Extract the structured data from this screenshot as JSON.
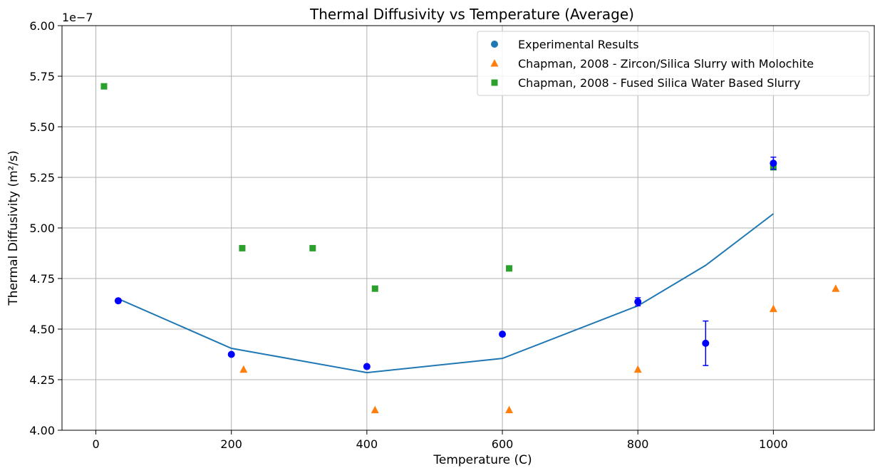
{
  "chart_data": {
    "type": "scatter",
    "title": "Thermal Diffusivity vs Temperature (Average)",
    "xlabel": "Temperature (C)",
    "ylabel": "Thermal Diffusivity (m²/s)",
    "y_offset_text": "1e−7",
    "xlim": [
      -50,
      1150
    ],
    "ylim": [
      4.0,
      6.0
    ],
    "xticks": [
      0,
      200,
      400,
      600,
      800,
      1000
    ],
    "yticks": [
      4.0,
      4.25,
      4.5,
      4.75,
      5.0,
      5.25,
      5.5,
      5.75,
      6.0
    ],
    "xtick_labels": [
      "0",
      "200",
      "400",
      "600",
      "800",
      "1000"
    ],
    "ytick_labels": [
      "4.00",
      "4.25",
      "4.50",
      "4.75",
      "5.00",
      "5.25",
      "5.50",
      "5.75",
      "6.00"
    ],
    "grid": true,
    "legend_position": "top-right",
    "series": [
      {
        "name": "Experimental Results",
        "marker": "circle",
        "color": "#0000ff",
        "legend_color": "#1f77b4",
        "points": [
          {
            "x": 33,
            "y": 4.64,
            "err": 0.01
          },
          {
            "x": 200,
            "y": 4.375,
            "err": 0.0
          },
          {
            "x": 400,
            "y": 4.315,
            "err": 0.0
          },
          {
            "x": 600,
            "y": 4.475,
            "err": 0.0
          },
          {
            "x": 800,
            "y": 4.635,
            "err": 0.02
          },
          {
            "x": 900,
            "y": 4.43,
            "err": 0.11
          },
          {
            "x": 1000,
            "y": 5.32,
            "err": 0.03
          }
        ]
      },
      {
        "name": "Chapman, 2008 - Zircon/Silica Slurry with Molochite",
        "marker": "triangle",
        "color": "#ff7f0e",
        "points": [
          {
            "x": 218,
            "y": 4.3
          },
          {
            "x": 412,
            "y": 4.1
          },
          {
            "x": 610,
            "y": 4.1
          },
          {
            "x": 800,
            "y": 4.3
          },
          {
            "x": 1000,
            "y": 4.6
          },
          {
            "x": 1092,
            "y": 4.7
          }
        ]
      },
      {
        "name": "Chapman, 2008 - Fused Silica Water Based Slurry",
        "marker": "square",
        "color": "#2ca02c",
        "points": [
          {
            "x": 12,
            "y": 5.7
          },
          {
            "x": 216,
            "y": 4.9
          },
          {
            "x": 320,
            "y": 4.9
          },
          {
            "x": 412,
            "y": 4.7
          },
          {
            "x": 610,
            "y": 4.8
          },
          {
            "x": 1000,
            "y": 5.3
          }
        ]
      }
    ],
    "fit_line": {
      "color": "#1f77b4",
      "x": [
        33,
        200,
        400,
        600,
        800,
        900,
        1000
      ],
      "y": [
        4.65,
        4.405,
        4.285,
        4.355,
        4.615,
        4.815,
        5.07
      ]
    }
  }
}
